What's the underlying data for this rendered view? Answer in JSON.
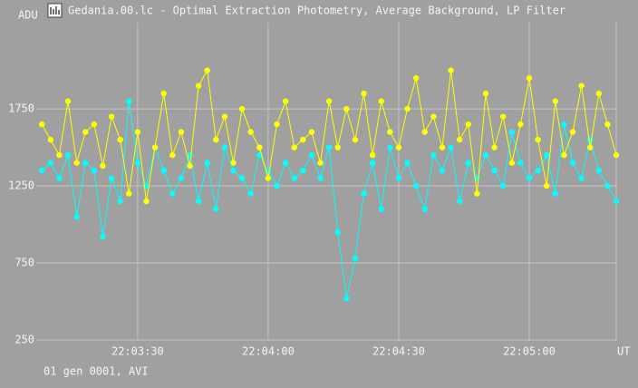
{
  "chart_data": {
    "type": "line",
    "title": "Gedania.00.lc - Optimal Extraction Photometry, Average Background, LP Filter",
    "ylabel": "ADU",
    "xlabel": "UT",
    "footer": "01 gen 0001, AVI",
    "x": [
      79388,
      79390,
      79392,
      79394,
      79396,
      79398,
      79400,
      79402,
      79404,
      79406,
      79408,
      79410,
      79412,
      79414,
      79416,
      79418,
      79420,
      79422,
      79424,
      79426,
      79428,
      79430,
      79432,
      79434,
      79436,
      79438,
      79440,
      79442,
      79444,
      79446,
      79448,
      79450,
      79452,
      79454,
      79456,
      79458,
      79460,
      79462,
      79464,
      79466,
      79468,
      79470,
      79472,
      79474,
      79476,
      79478,
      79480,
      79482,
      79484,
      79486,
      79488,
      79490,
      79492,
      79494,
      79496,
      79498,
      79500,
      79502,
      79504,
      79506,
      79508,
      79510,
      79512,
      79514,
      79516,
      79518,
      79520
    ],
    "xlim": [
      79386.7,
      79520
    ],
    "xticks": [
      {
        "value": 79410,
        "label": "22:03:30"
      },
      {
        "value": 79440,
        "label": "22:04:00"
      },
      {
        "value": 79470,
        "label": "22:04:30"
      },
      {
        "value": 79500,
        "label": "22:05:00"
      }
    ],
    "ylim": [
      250,
      2310
    ],
    "yticks": [
      250,
      750,
      1250,
      1750
    ],
    "grid": true,
    "series": [
      {
        "color": "#00ffff",
        "values": [
          1350,
          1400,
          1300,
          1450,
          1050,
          1400,
          1350,
          920,
          1300,
          1150,
          1800,
          1400,
          1250,
          1500,
          1350,
          1200,
          1300,
          1450,
          1150,
          1400,
          1100,
          1500,
          1350,
          1300,
          1200,
          1450,
          1350,
          1250,
          1400,
          1300,
          1350,
          1450,
          1300,
          1500,
          950,
          520,
          780,
          1200,
          1400,
          1100,
          1500,
          1300,
          1400,
          1250,
          1100,
          1450,
          1350,
          1500,
          1150,
          1400,
          1300,
          1450,
          1350,
          1250,
          1600,
          1400,
          1300,
          1350,
          1450,
          1200,
          1650,
          1400,
          1300,
          1550,
          1350,
          1250,
          1150
        ]
      },
      {
        "color": "#ffff00",
        "values": [
          1650,
          1550,
          1450,
          1800,
          1400,
          1600,
          1650,
          1380,
          1700,
          1550,
          1200,
          1600,
          1150,
          1500,
          1850,
          1450,
          1600,
          1380,
          1900,
          2000,
          1550,
          1700,
          1400,
          1750,
          1600,
          1500,
          1300,
          1650,
          1800,
          1500,
          1550,
          1600,
          1400,
          1800,
          1500,
          1750,
          1550,
          1850,
          1450,
          1800,
          1600,
          1500,
          1750,
          1950,
          1600,
          1700,
          1500,
          2000,
          1550,
          1650,
          1200,
          1850,
          1500,
          1700,
          1400,
          1650,
          1950,
          1550,
          1250,
          1800,
          1450,
          1600,
          1900,
          1500,
          1850,
          1650,
          1450
        ]
      }
    ]
  }
}
